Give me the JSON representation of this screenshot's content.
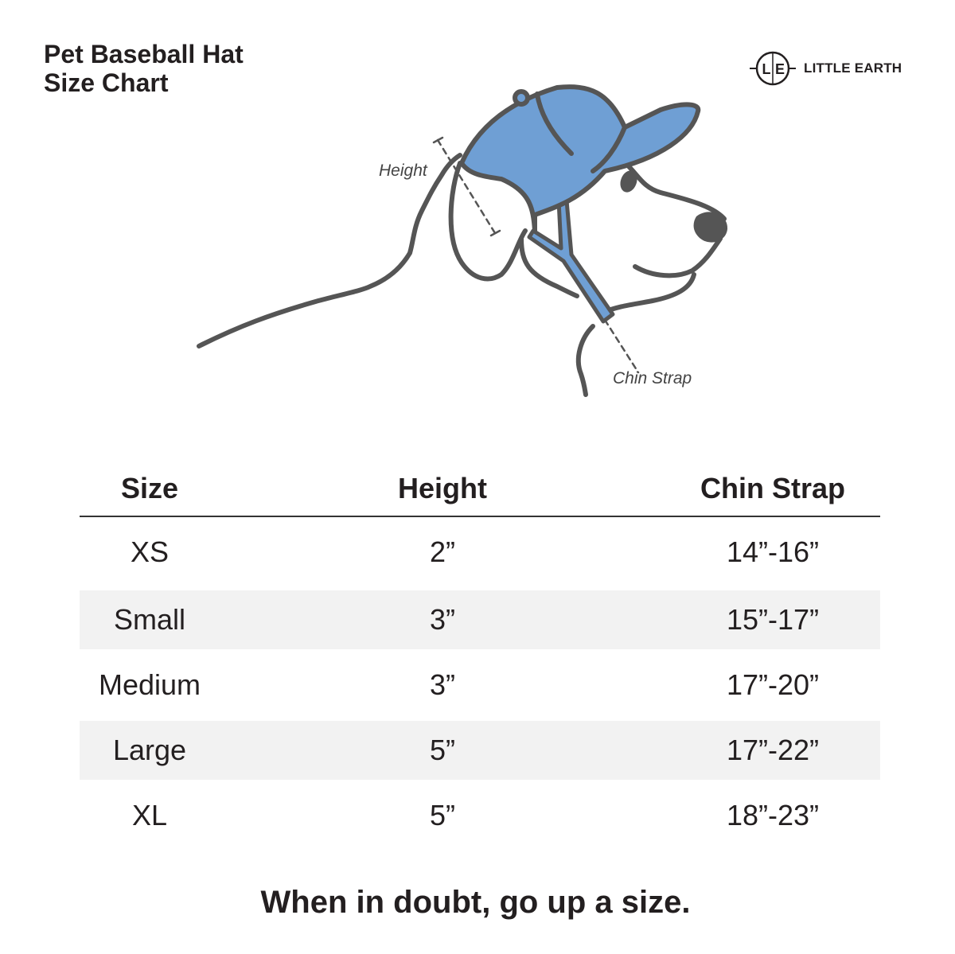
{
  "title": {
    "line1": "Pet Baseball Hat",
    "line2": "Size Chart"
  },
  "brand": {
    "logo_letters": "L|E",
    "name": "LITTLE EARTH"
  },
  "diagram": {
    "height_label": "Height",
    "chin_label": "Chin Strap",
    "hat_color": "#6f9fd4",
    "line_color": "#555555"
  },
  "table": {
    "headers": [
      "Size",
      "Height",
      "Chin Strap"
    ],
    "rows": [
      {
        "size": "XS",
        "height": "2”",
        "chin": "14”-16”"
      },
      {
        "size": "Small",
        "height": "3”",
        "chin": "15”-17”"
      },
      {
        "size": "Medium",
        "height": "3”",
        "chin": "17”-20”"
      },
      {
        "size": "Large",
        "height": "5”",
        "chin": "17”-22”"
      },
      {
        "size": "XL",
        "height": "5”",
        "chin": "18”-23”"
      }
    ]
  },
  "footer_note": "When in doubt, go up a size."
}
